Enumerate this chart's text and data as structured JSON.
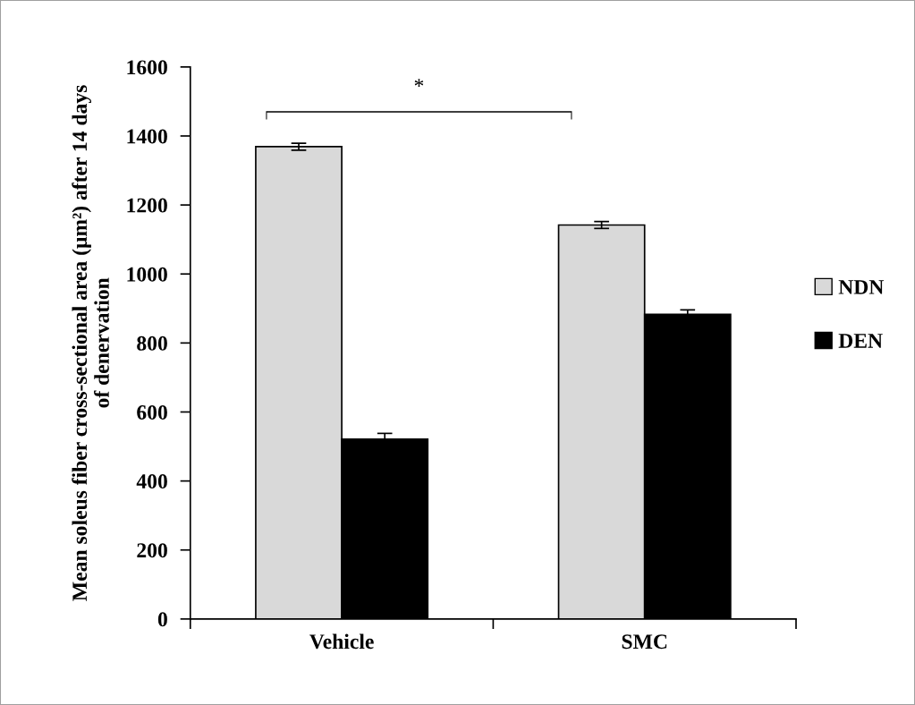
{
  "chart_data": {
    "type": "bar",
    "ylabel": "Mean soleus fiber cross-sectional area (μm²) after 14 days\nof denervation",
    "categories": [
      "Vehicle",
      "SMC"
    ],
    "series": [
      {
        "name": "NDN",
        "color": "#d9d9d9",
        "values": [
          1369,
          1142
        ],
        "errors": [
          10,
          10
        ]
      },
      {
        "name": "DEN",
        "color": "#000000",
        "values": [
          521,
          883
        ],
        "errors": [
          17,
          13
        ]
      }
    ],
    "ylim": [
      0,
      1600
    ],
    "yticks": [
      0,
      200,
      400,
      600,
      800,
      1000,
      1200,
      1400,
      1600
    ],
    "annotations": [
      "*"
    ],
    "legend": "right",
    "grid": false
  }
}
